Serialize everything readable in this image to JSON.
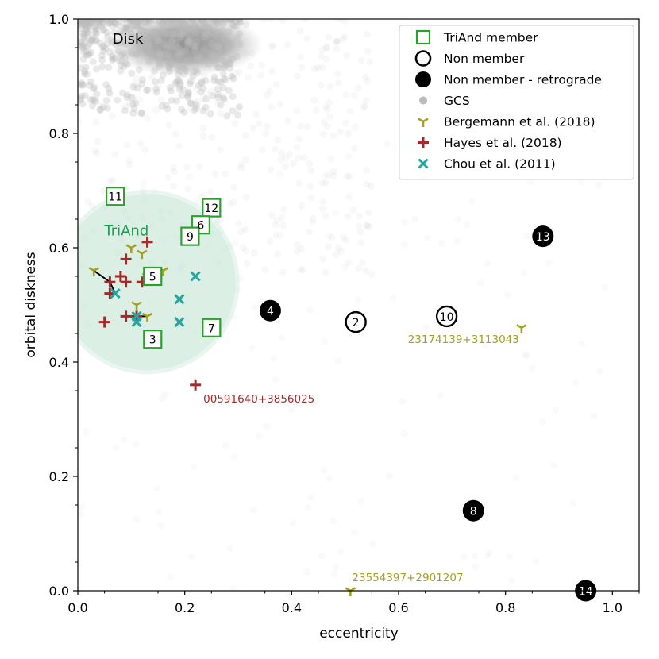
{
  "chart_data": {
    "type": "scatter",
    "xlabel": "eccentricity",
    "ylabel": "orbital diskness",
    "xlim": [
      0.0,
      1.05
    ],
    "ylim": [
      0.0,
      1.0
    ],
    "xticks": [
      "0.0",
      "0.2",
      "0.4",
      "0.6",
      "0.8",
      "1.0"
    ],
    "xtick_values": [
      0.0,
      0.2,
      0.4,
      0.6,
      0.8,
      1.0
    ],
    "yticks": [
      "0.0",
      "0.2",
      "0.4",
      "0.6",
      "0.8",
      "1.0"
    ],
    "ytick_values": [
      0.0,
      0.2,
      0.4,
      0.6,
      0.8,
      1.0
    ],
    "legend": {
      "placement": "top-right",
      "entries": [
        {
          "label": "TriAnd member",
          "marker": "square-open",
          "color": "#2ca02c"
        },
        {
          "label": "Non member",
          "marker": "circle-open",
          "color": "#000000"
        },
        {
          "label": "Non member - retrograde",
          "marker": "circle-filled",
          "color": "#000000"
        },
        {
          "label": "GCS",
          "marker": "dot",
          "color": "#bbbbbb"
        },
        {
          "label": "Bergemann et al. (2018)",
          "marker": "tri-down",
          "color": "#a5a023"
        },
        {
          "label": "Hayes et al. (2018)",
          "marker": "plus",
          "color": "#a62a2a"
        },
        {
          "label": "Chou et al. (2011)",
          "marker": "x",
          "color": "#26a6a3"
        }
      ]
    },
    "triand_region": {
      "label": "TriAnd",
      "center": [
        0.13,
        0.54
      ],
      "radius": 0.165,
      "color": "#1a9e4f"
    },
    "disk_label": "Disk",
    "triand_members": [
      {
        "id": "11",
        "x": 0.07,
        "y": 0.69
      },
      {
        "id": "12",
        "x": 0.25,
        "y": 0.67
      },
      {
        "id": "6",
        "x": 0.23,
        "y": 0.64
      },
      {
        "id": "9",
        "x": 0.21,
        "y": 0.62
      },
      {
        "id": "5",
        "x": 0.14,
        "y": 0.55
      },
      {
        "id": "7",
        "x": 0.25,
        "y": 0.46
      },
      {
        "id": "3",
        "x": 0.14,
        "y": 0.44
      }
    ],
    "non_members": [
      {
        "id": "2",
        "x": 0.52,
        "y": 0.47
      },
      {
        "id": "10",
        "x": 0.69,
        "y": 0.48
      }
    ],
    "retrograde": [
      {
        "id": "4",
        "x": 0.36,
        "y": 0.49
      },
      {
        "id": "13",
        "x": 0.87,
        "y": 0.62
      },
      {
        "id": "8",
        "x": 0.74,
        "y": 0.14
      },
      {
        "id": "14",
        "x": 0.95,
        "y": 0.0
      }
    ],
    "bergemann": [
      {
        "x": 0.03,
        "y": 0.56
      },
      {
        "x": 0.1,
        "y": 0.6
      },
      {
        "x": 0.12,
        "y": 0.59
      },
      {
        "x": 0.16,
        "y": 0.56
      },
      {
        "x": 0.13,
        "y": 0.55
      },
      {
        "x": 0.11,
        "y": 0.5
      },
      {
        "x": 0.13,
        "y": 0.48
      },
      {
        "x": 0.83,
        "y": 0.46,
        "label": "23174139+3113043"
      },
      {
        "x": 0.51,
        "y": 0.0,
        "label": "23554397+2901207"
      }
    ],
    "hayes": [
      {
        "x": 0.13,
        "y": 0.61
      },
      {
        "x": 0.09,
        "y": 0.58
      },
      {
        "x": 0.08,
        "y": 0.55
      },
      {
        "x": 0.09,
        "y": 0.54
      },
      {
        "x": 0.12,
        "y": 0.54
      },
      {
        "x": 0.06,
        "y": 0.54
      },
      {
        "x": 0.06,
        "y": 0.52
      },
      {
        "x": 0.09,
        "y": 0.48
      },
      {
        "x": 0.11,
        "y": 0.48
      },
      {
        "x": 0.05,
        "y": 0.47
      },
      {
        "x": 0.22,
        "y": 0.36,
        "label": "00591640+3856025"
      }
    ],
    "chou": [
      {
        "x": 0.22,
        "y": 0.55
      },
      {
        "x": 0.07,
        "y": 0.52
      },
      {
        "x": 0.19,
        "y": 0.51
      },
      {
        "x": 0.11,
        "y": 0.48
      },
      {
        "x": 0.11,
        "y": 0.47
      },
      {
        "x": 0.19,
        "y": 0.47
      }
    ],
    "connectors": [
      {
        "x1": 0.03,
        "y1": 0.56,
        "x2": 0.06,
        "y2": 0.54
      },
      {
        "x1": 0.06,
        "y1": 0.54,
        "x2": 0.07,
        "y2": 0.52
      },
      {
        "x1": 0.09,
        "y1": 0.48,
        "x2": 0.13,
        "y2": 0.48
      }
    ]
  }
}
